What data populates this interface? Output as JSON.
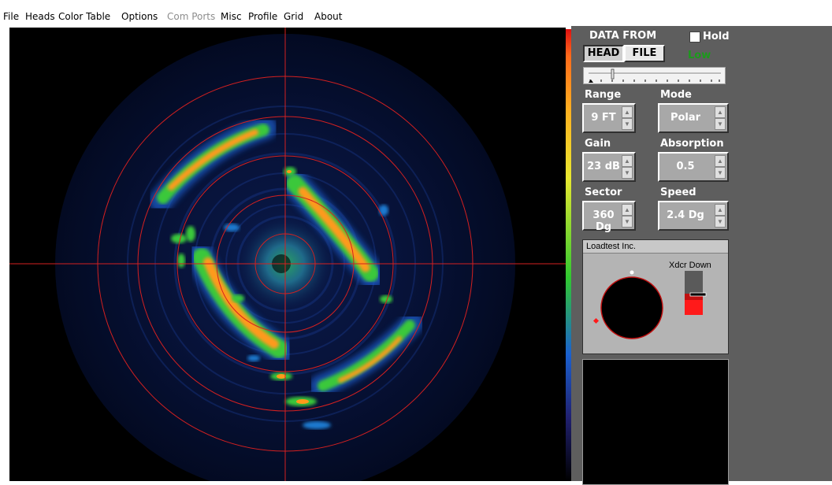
{
  "menu": {
    "items": [
      {
        "label": "File",
        "enabled": true
      },
      {
        "label": "Heads",
        "enabled": true
      },
      {
        "label": "Color Table",
        "enabled": true
      },
      {
        "label": "Options",
        "enabled": true
      },
      {
        "label": "Com Ports",
        "enabled": false
      },
      {
        "label": "Misc",
        "enabled": true
      },
      {
        "label": "Profile",
        "enabled": true
      },
      {
        "label": "Grid",
        "enabled": true
      },
      {
        "label": "About",
        "enabled": true
      }
    ]
  },
  "panel": {
    "data_from_label": "DATA FROM",
    "hold_label": "Hold",
    "hold_checked": false,
    "source_buttons": {
      "head": "HEAD",
      "file": "FILE",
      "active": "HEAD"
    },
    "status": "Low",
    "range": {
      "label": "Range",
      "value": "9 FT"
    },
    "mode": {
      "label": "Mode",
      "value": "Polar"
    },
    "gain": {
      "label": "Gain",
      "value": "23 dB"
    },
    "absorption": {
      "label": "Absorption",
      "value": "0.5"
    },
    "sector": {
      "label": "Sector",
      "value": "360 Dg"
    },
    "speed": {
      "label": "Speed",
      "value": "2.4 Dg"
    },
    "transducer": {
      "title": "Loadtest Inc.",
      "orientation": "Xdcr Down"
    }
  },
  "colors": {
    "grid": "#d42020",
    "panel_bg": "#5e5e5e",
    "status_green": "#1b9a1b",
    "echo_strong": "#ff9a1a",
    "echo_mid": "#3ac83a",
    "echo_weak": "#1a3bb0"
  }
}
